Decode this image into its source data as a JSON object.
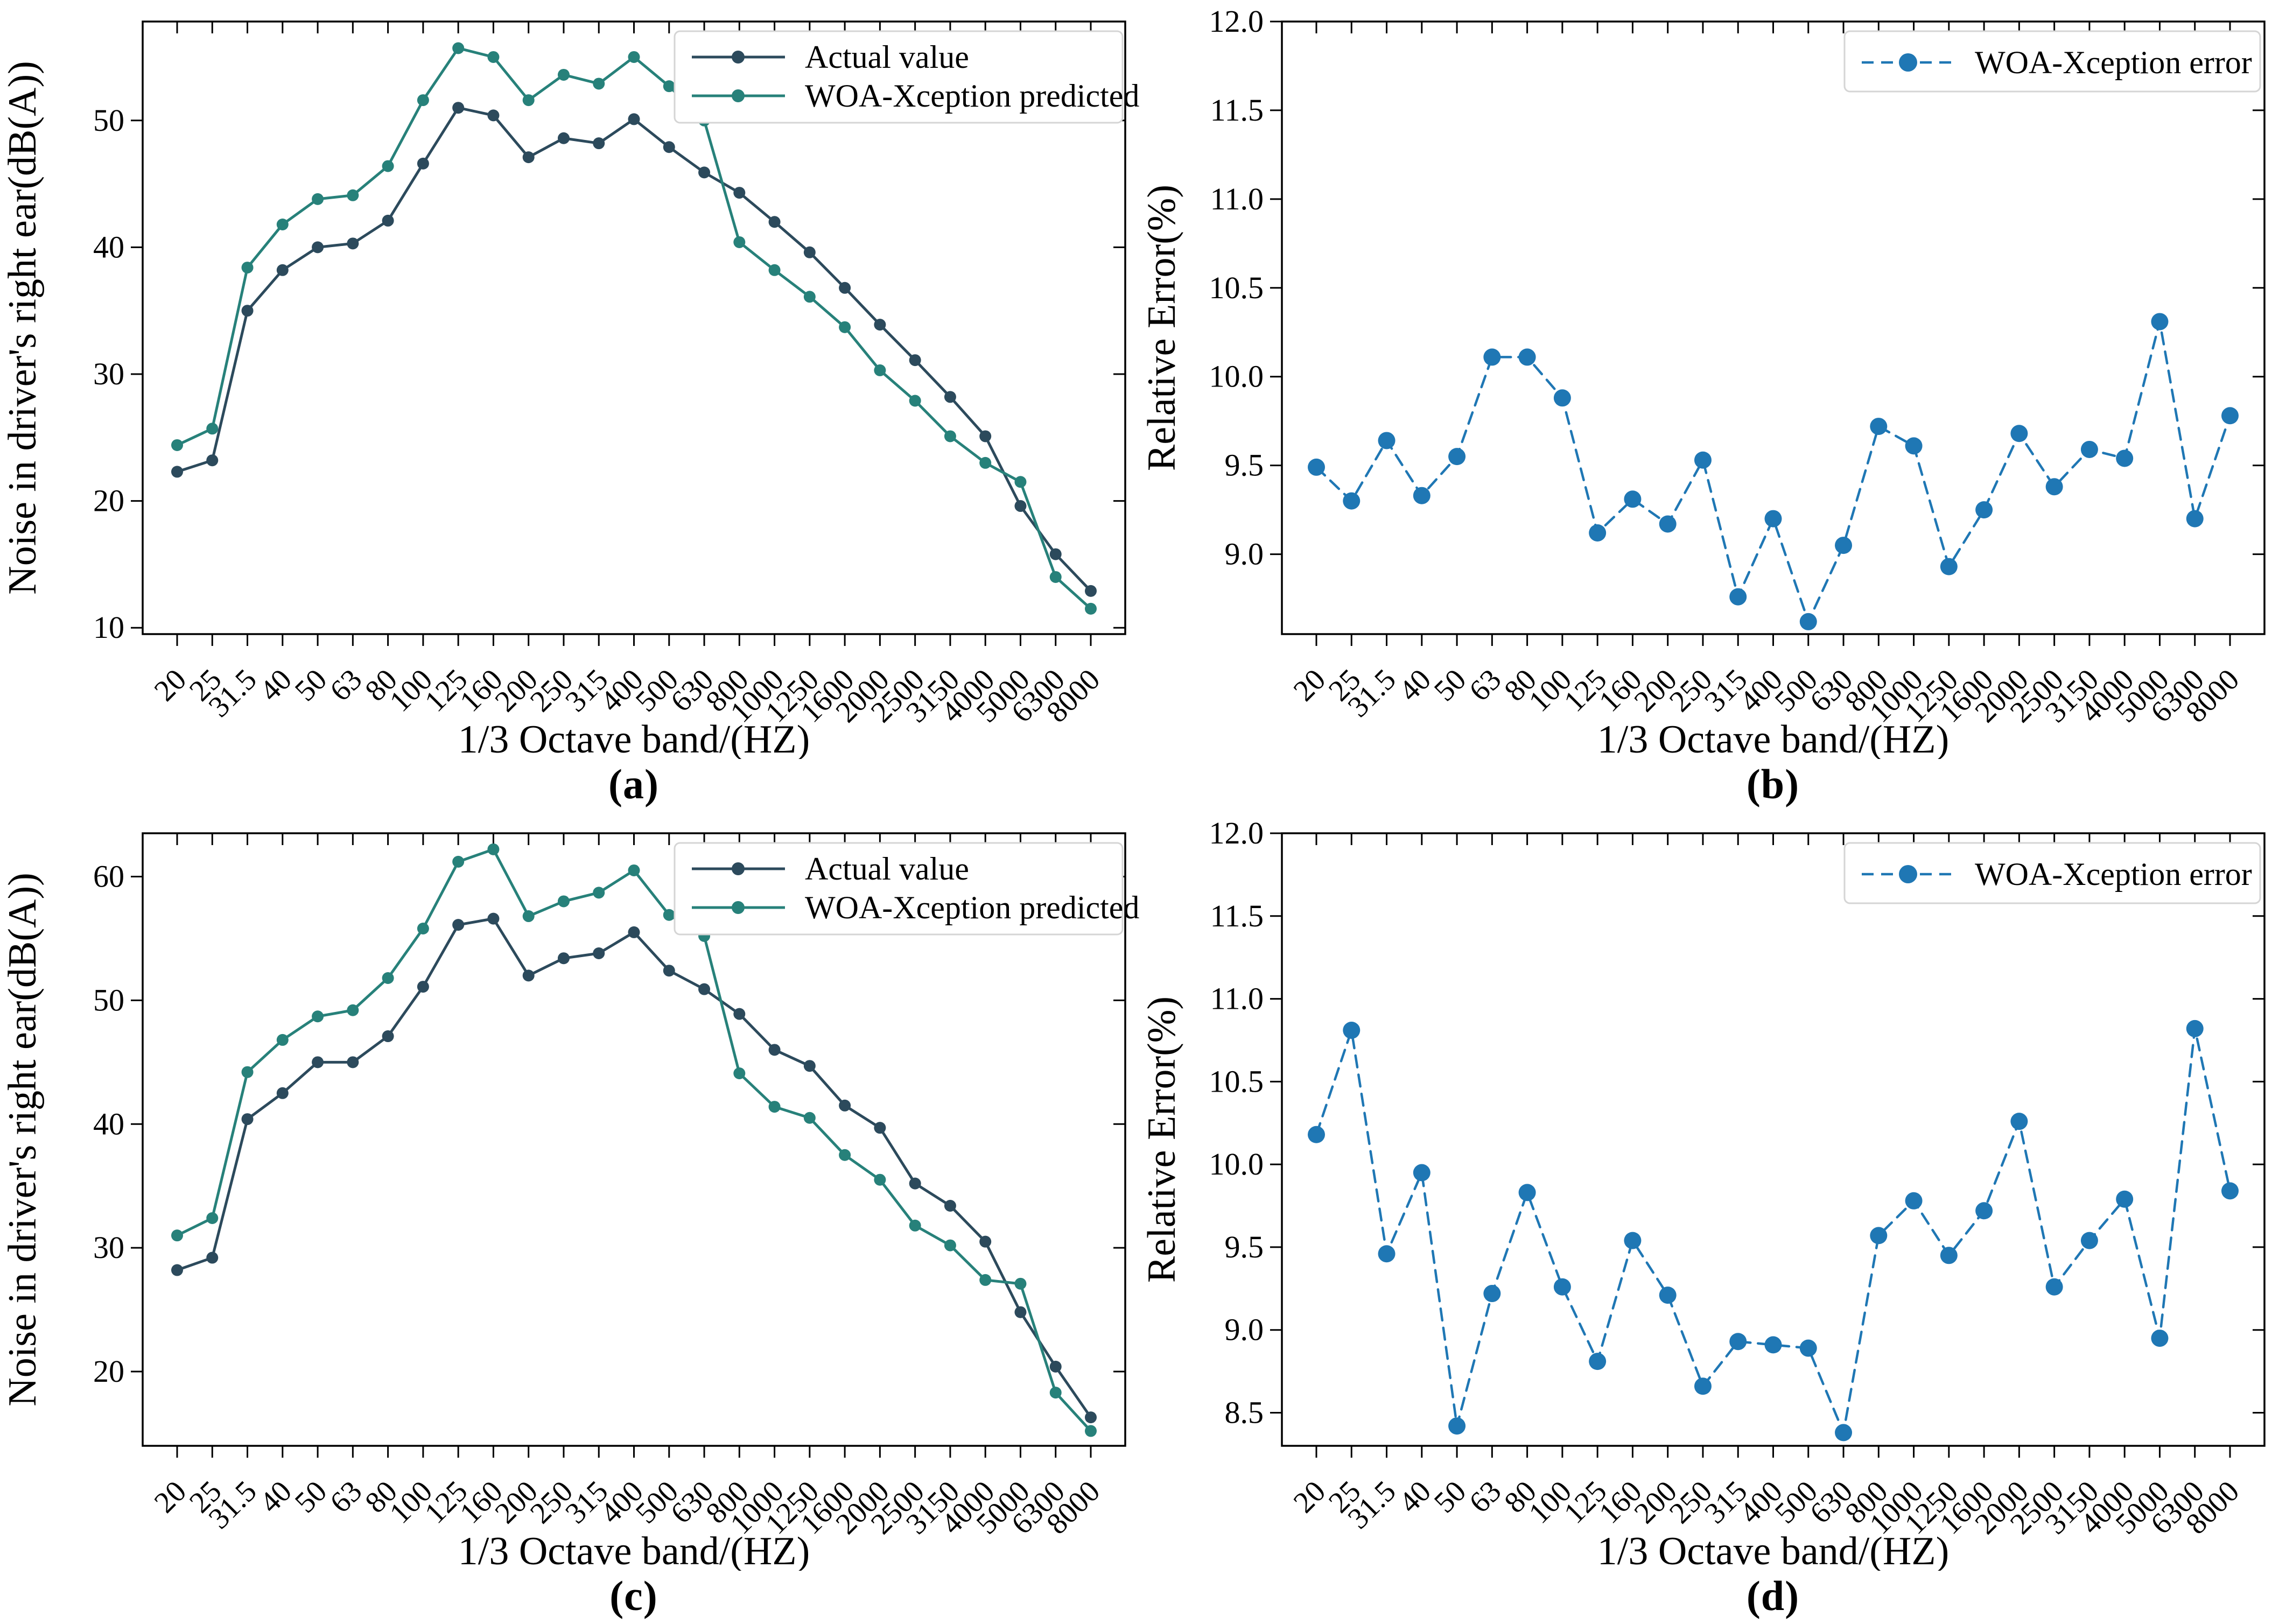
{
  "figure": {
    "background": "#ffffff",
    "spine_color": "#000000",
    "legend_border_color": "#d5d5d5"
  },
  "chart_data": [
    {
      "id": "a",
      "type": "line",
      "caption": "(a)",
      "xlabel": "1/3 Octave band/(HZ)",
      "ylabel": "Noise in driver's right ear(dB(A))",
      "categories": [
        "20",
        "25",
        "31.5",
        "40",
        "50",
        "63",
        "80",
        "100",
        "125",
        "160",
        "200",
        "250",
        "315",
        "400",
        "500",
        "630",
        "800",
        "1000",
        "1250",
        "1600",
        "2000",
        "2500",
        "3150",
        "4000",
        "5000",
        "6300",
        "8000"
      ],
      "x_tick_rotation": 45,
      "grid": false,
      "legend_position": "upper right",
      "ylim": [
        9.5,
        57.8
      ],
      "yticks": [
        10,
        20,
        30,
        40,
        50
      ],
      "ytick_labels": [
        "10",
        "20",
        "30",
        "40",
        "50"
      ],
      "series": [
        {
          "name": "Actual value",
          "color": "#2c4a5c",
          "linestyle": "solid",
          "dash": "",
          "line_width": 5,
          "marker": "circle",
          "marker_radius": 11,
          "values": [
            22.3,
            23.2,
            35.0,
            38.2,
            40.0,
            40.3,
            42.1,
            46.6,
            51.0,
            50.4,
            47.1,
            48.6,
            48.2,
            50.1,
            47.9,
            45.9,
            44.3,
            42.0,
            39.6,
            36.8,
            33.9,
            31.1,
            28.2,
            25.1,
            19.6,
            15.8,
            12.9
          ]
        },
        {
          "name": "WOA-Xception predicted",
          "color": "#27817a",
          "linestyle": "solid",
          "dash": "",
          "line_width": 5,
          "marker": "circle",
          "marker_radius": 11,
          "values": [
            24.4,
            25.7,
            38.4,
            41.8,
            43.8,
            44.1,
            46.4,
            51.6,
            55.7,
            55.0,
            51.6,
            53.6,
            52.9,
            55.0,
            52.7,
            50.0,
            40.4,
            38.2,
            36.1,
            33.7,
            30.3,
            27.9,
            25.1,
            23.0,
            21.5,
            14.0,
            11.5
          ]
        }
      ]
    },
    {
      "id": "b",
      "type": "line",
      "caption": "(b)",
      "xlabel": "1/3 Octave band/(HZ)",
      "ylabel": "Relative Error(%)",
      "categories": [
        "20",
        "25",
        "31.5",
        "40",
        "50",
        "63",
        "80",
        "100",
        "125",
        "160",
        "200",
        "250",
        "315",
        "400",
        "500",
        "630",
        "800",
        "1000",
        "1250",
        "1600",
        "2000",
        "2500",
        "3150",
        "4000",
        "5000",
        "6300",
        "8000"
      ],
      "x_tick_rotation": 45,
      "grid": false,
      "legend_position": "upper right",
      "ylim": [
        8.55,
        12.0
      ],
      "yticks": [
        9.0,
        9.5,
        10.0,
        10.5,
        11.0,
        11.5,
        12.0
      ],
      "ytick_labels": [
        "9.0",
        "9.5",
        "10.0",
        "10.5",
        "11.0",
        "11.5",
        "12.0"
      ],
      "series": [
        {
          "name": "WOA-Xception error",
          "color": "#1f77b4",
          "linestyle": "dashed",
          "dash": "22 14",
          "line_width": 4.5,
          "marker": "circle",
          "marker_radius": 16,
          "values": [
            9.49,
            9.3,
            9.64,
            9.33,
            9.55,
            10.11,
            10.11,
            9.88,
            9.12,
            9.31,
            9.17,
            9.53,
            8.76,
            9.2,
            8.62,
            9.05,
            9.72,
            9.61,
            8.93,
            9.25,
            9.68,
            9.38,
            9.59,
            9.54,
            10.31,
            9.2,
            9.78
          ]
        }
      ]
    },
    {
      "id": "c",
      "type": "line",
      "caption": "(c)",
      "xlabel": "1/3 Octave band/(HZ)",
      "ylabel": "Noise in driver's right ear(dB(A))",
      "categories": [
        "20",
        "25",
        "31.5",
        "40",
        "50",
        "63",
        "80",
        "100",
        "125",
        "160",
        "200",
        "250",
        "315",
        "400",
        "500",
        "630",
        "800",
        "1000",
        "1250",
        "1600",
        "2000",
        "2500",
        "3150",
        "4000",
        "5000",
        "6300",
        "8000"
      ],
      "x_tick_rotation": 45,
      "grid": false,
      "legend_position": "upper right",
      "ylim": [
        14.0,
        63.5
      ],
      "yticks": [
        20,
        30,
        40,
        50,
        60
      ],
      "ytick_labels": [
        "20",
        "30",
        "40",
        "50",
        "60"
      ],
      "series": [
        {
          "name": "Actual value",
          "color": "#2c4a5c",
          "linestyle": "solid",
          "dash": "",
          "line_width": 5,
          "marker": "circle",
          "marker_radius": 11,
          "values": [
            28.2,
            29.2,
            40.4,
            42.5,
            45.0,
            45.0,
            47.1,
            51.1,
            56.1,
            56.6,
            52.0,
            53.4,
            53.8,
            55.5,
            52.4,
            50.9,
            48.9,
            46.0,
            44.7,
            41.5,
            39.7,
            35.2,
            33.4,
            30.5,
            24.8,
            20.4,
            16.3
          ]
        },
        {
          "name": "WOA-Xception predicted",
          "color": "#27817a",
          "linestyle": "solid",
          "dash": "",
          "line_width": 5,
          "marker": "circle",
          "marker_radius": 11,
          "values": [
            31.0,
            32.4,
            44.2,
            46.8,
            48.7,
            49.2,
            51.8,
            55.8,
            61.2,
            62.2,
            56.8,
            58.0,
            58.7,
            60.5,
            56.9,
            55.2,
            44.1,
            41.4,
            40.5,
            37.5,
            35.5,
            31.8,
            30.2,
            27.4,
            27.1,
            18.3,
            15.2
          ]
        }
      ]
    },
    {
      "id": "d",
      "type": "line",
      "caption": "(d)",
      "xlabel": "1/3 Octave band/(HZ)",
      "ylabel": "Relative Error(%)",
      "categories": [
        "20",
        "25",
        "31.5",
        "40",
        "50",
        "63",
        "80",
        "100",
        "125",
        "160",
        "200",
        "250",
        "315",
        "400",
        "500",
        "630",
        "800",
        "1000",
        "1250",
        "1600",
        "2000",
        "2500",
        "3150",
        "4000",
        "5000",
        "6300",
        "8000"
      ],
      "x_tick_rotation": 45,
      "grid": false,
      "legend_position": "upper right",
      "ylim": [
        8.3,
        12.0
      ],
      "yticks": [
        8.5,
        9.0,
        9.5,
        10.0,
        10.5,
        11.0,
        11.5,
        12.0
      ],
      "ytick_labels": [
        "8.5",
        "9.0",
        "9.5",
        "10.0",
        "10.5",
        "11.0",
        "11.5",
        "12.0"
      ],
      "series": [
        {
          "name": "WOA-Xception error",
          "color": "#1f77b4",
          "linestyle": "dashed",
          "dash": "22 14",
          "line_width": 4.5,
          "marker": "circle",
          "marker_radius": 16,
          "values": [
            10.18,
            10.81,
            9.46,
            9.95,
            8.42,
            9.22,
            9.83,
            9.26,
            8.81,
            9.54,
            9.21,
            8.66,
            8.93,
            8.91,
            8.89,
            8.38,
            9.57,
            9.78,
            9.45,
            9.72,
            10.26,
            9.26,
            9.54,
            9.79,
            8.95,
            10.82,
            9.84
          ]
        }
      ]
    }
  ]
}
